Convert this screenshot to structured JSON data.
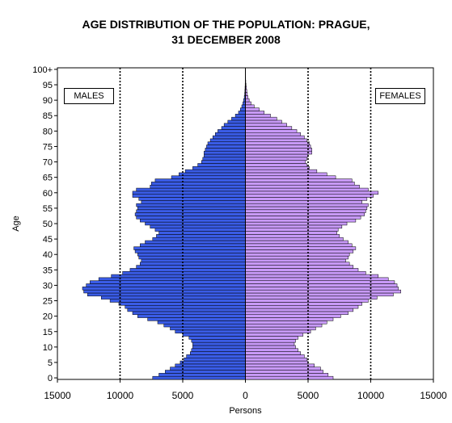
{
  "chart_data": {
    "type": "bar",
    "orientation": "horizontal-pyramid",
    "title_line1": "AGE DISTRIBUTION OF THE POPULATION: PRAGUE,",
    "title_line2": "31 DECEMBER 2008",
    "xlabel": "Persons",
    "ylabel": "Age",
    "xlim": [
      -15000,
      15000
    ],
    "x_ticks": [
      -15000,
      -10000,
      -5000,
      0,
      5000,
      10000,
      15000
    ],
    "x_tick_labels": [
      "15000",
      "10000",
      "5000",
      "0",
      "5000",
      "10000",
      "15000"
    ],
    "y_tick_labels": [
      "0",
      "5",
      "10",
      "15",
      "20",
      "25",
      "30",
      "35",
      "40",
      "45",
      "50",
      "55",
      "60",
      "65",
      "70",
      "75",
      "80",
      "85",
      "90",
      "95",
      "100+"
    ],
    "ages": [
      0,
      1,
      2,
      3,
      4,
      5,
      6,
      7,
      8,
      9,
      10,
      11,
      12,
      13,
      14,
      15,
      16,
      17,
      18,
      19,
      20,
      21,
      22,
      23,
      24,
      25,
      26,
      27,
      28,
      29,
      30,
      31,
      32,
      33,
      34,
      35,
      36,
      37,
      38,
      39,
      40,
      41,
      42,
      43,
      44,
      45,
      46,
      47,
      48,
      49,
      50,
      51,
      52,
      53,
      54,
      55,
      56,
      57,
      58,
      59,
      60,
      61,
      62,
      63,
      64,
      65,
      66,
      67,
      68,
      69,
      70,
      71,
      72,
      73,
      74,
      75,
      76,
      77,
      78,
      79,
      80,
      81,
      82,
      83,
      84,
      85,
      86,
      87,
      88,
      89,
      90,
      91,
      92,
      93,
      94,
      95,
      96,
      97,
      98,
      99,
      100
    ],
    "grid": "dotted vertical at ±5000 and ±10000",
    "series": [
      {
        "name": "MALES",
        "color": "#3a5ce6",
        "values": [
          7400,
          6900,
          6400,
          6000,
          5600,
          5200,
          4900,
          4700,
          4400,
          4300,
          4200,
          4200,
          4300,
          4500,
          5000,
          5600,
          6000,
          6500,
          7000,
          7800,
          8600,
          9000,
          9400,
          9600,
          10100,
          10800,
          11500,
          12600,
          12900,
          13000,
          12700,
          12400,
          11700,
          10700,
          9800,
          9200,
          8700,
          8400,
          8300,
          8500,
          8600,
          8800,
          8900,
          8400,
          8000,
          7400,
          7100,
          6900,
          7200,
          7600,
          8000,
          8400,
          8700,
          8800,
          8700,
          8600,
          8700,
          8300,
          8500,
          9000,
          9000,
          8700,
          7600,
          7500,
          7200,
          5900,
          5300,
          4800,
          4200,
          3800,
          3500,
          3400,
          3300,
          3300,
          3200,
          3100,
          3000,
          2800,
          2600,
          2400,
          2200,
          1900,
          1700,
          1400,
          1100,
          800,
          550,
          400,
          290,
          200,
          140,
          90,
          60,
          40,
          30,
          20,
          12,
          8,
          5,
          3,
          5
        ]
      },
      {
        "name": "FEMALES",
        "color": "#c89af8",
        "values": [
          7000,
          6600,
          6200,
          6000,
          5500,
          5000,
          4900,
          4700,
          4400,
          4200,
          4000,
          3900,
          4000,
          4200,
          4600,
          5200,
          5600,
          6100,
          6500,
          7000,
          7600,
          8200,
          8600,
          9000,
          9300,
          9800,
          10500,
          11800,
          12400,
          12200,
          12100,
          11900,
          11400,
          10600,
          9600,
          9000,
          8600,
          8300,
          8000,
          8200,
          8300,
          8600,
          8800,
          8500,
          8200,
          7800,
          7500,
          7300,
          7400,
          7700,
          8100,
          8800,
          9200,
          9500,
          9600,
          9700,
          9800,
          9300,
          9700,
          10200,
          10600,
          9800,
          9100,
          8700,
          8500,
          7200,
          6500,
          5700,
          5100,
          4900,
          4800,
          4900,
          5000,
          5300,
          5300,
          5200,
          5100,
          4900,
          4700,
          4400,
          4100,
          3700,
          3300,
          2900,
          2500,
          2000,
          1500,
          1100,
          700,
          450,
          300,
          200,
          150,
          110,
          80,
          50,
          30,
          20,
          12,
          7,
          10
        ]
      }
    ],
    "legend_left": "MALES",
    "legend_right": "FEMALES"
  }
}
